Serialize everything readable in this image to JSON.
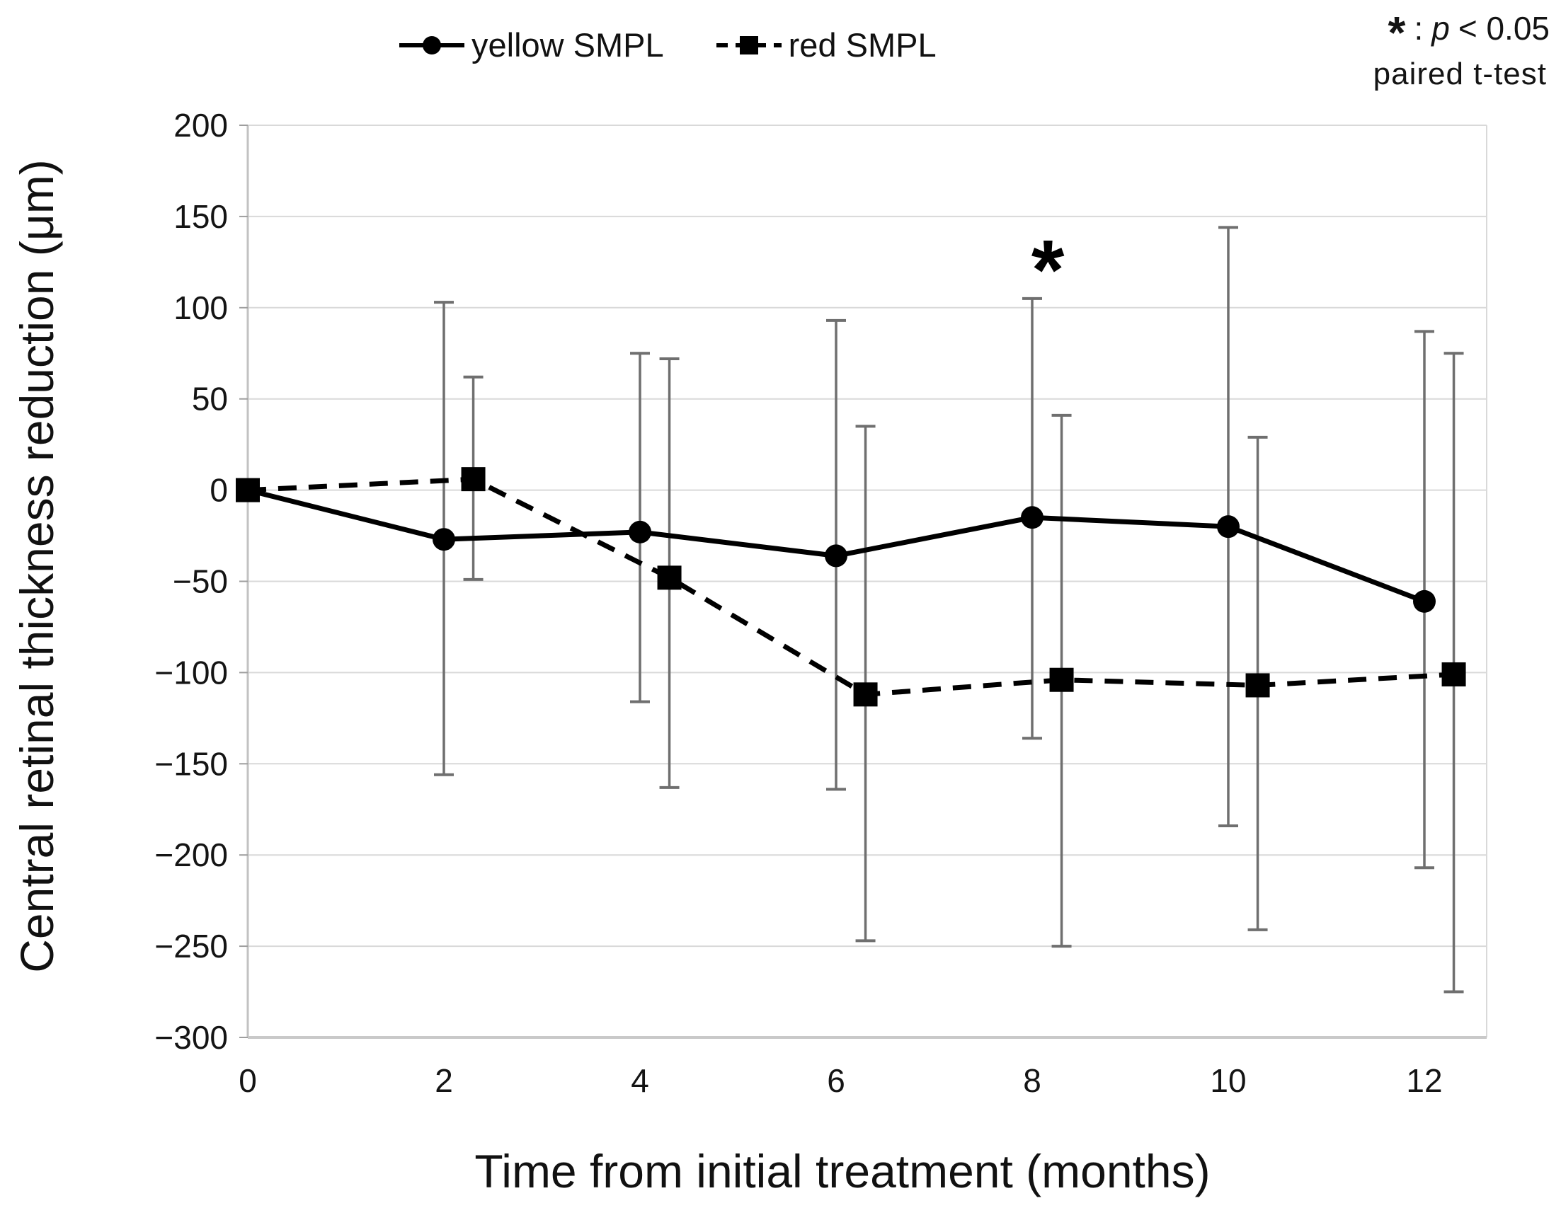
{
  "page": {
    "background": "#ffffff"
  },
  "annotation": {
    "symbol": "*",
    "separator": " : ",
    "p": "p",
    "condition": " < 0.05",
    "line2": "paired t-test"
  },
  "chart_data": {
    "type": "line",
    "title": "",
    "xlabel": "Time from initial treatment (months)",
    "ylabel": "Central retinal thickness reduction (μm)",
    "months": [
      0,
      2,
      4,
      6,
      8,
      10,
      12
    ],
    "xlim": [
      0,
      12.64
    ],
    "ylim": [
      -300,
      200
    ],
    "ytick_step": 50,
    "grid": true,
    "legend_position": "top-center",
    "colors": {
      "series": "#000000",
      "error_bar": "#6f6f6f",
      "grid": "#d9d9d9",
      "axis": "#c2c2c2",
      "text": "#141414"
    },
    "significance_marker": {
      "symbol": "*",
      "x": 8.16,
      "y": 128,
      "meaning": "p < 0.05"
    },
    "series": [
      {
        "name": "yellow SMPL",
        "line": "solid",
        "marker": "circle",
        "x_plot": [
          0,
          2,
          4,
          6,
          8,
          10,
          12
        ],
        "y": [
          0,
          -27,
          -23,
          -36,
          -15,
          -20,
          -61
        ],
        "err_lo": [
          null,
          -156,
          -116,
          -164,
          -136,
          -184,
          -207
        ],
        "err_hi": [
          null,
          103,
          75,
          93,
          105,
          144,
          87
        ]
      },
      {
        "name": "red SMPL",
        "line": "dashed",
        "marker": "square",
        "x_plot": [
          0,
          2.3,
          4.3,
          6.3,
          8.3,
          10.3,
          12.3
        ],
        "y": [
          0,
          6,
          -48,
          -112,
          -104,
          -107,
          -101
        ],
        "err_lo": [
          null,
          -49,
          -163,
          -247,
          -250,
          -241,
          -275
        ],
        "err_hi": [
          null,
          62,
          72,
          35,
          41,
          29,
          75
        ]
      }
    ]
  }
}
